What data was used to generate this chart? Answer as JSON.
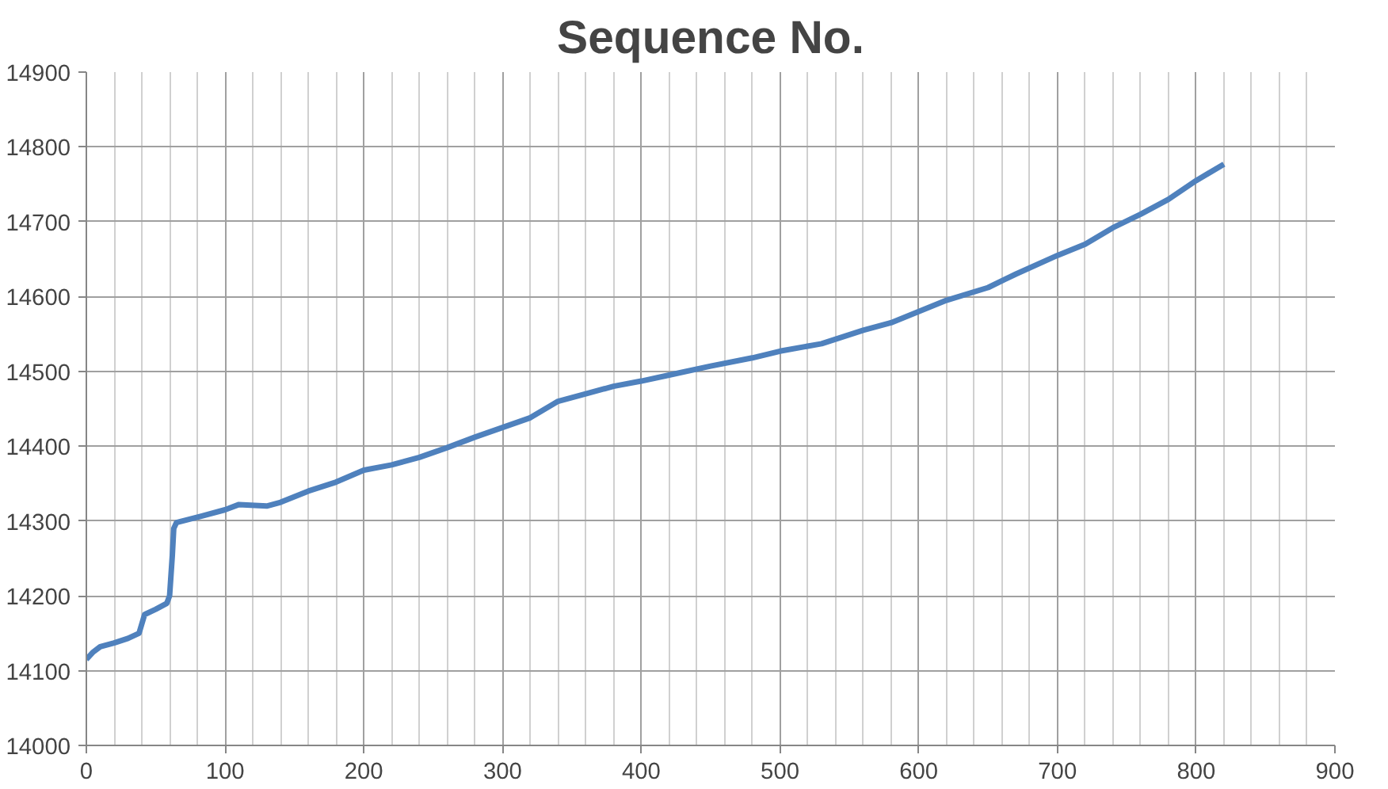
{
  "chart_data": {
    "type": "line",
    "title": "Sequence No.",
    "x": [
      0,
      5,
      10,
      20,
      30,
      38,
      42,
      50,
      58,
      60,
      62,
      63,
      65,
      80,
      100,
      110,
      130,
      140,
      160,
      180,
      200,
      220,
      240,
      260,
      280,
      300,
      320,
      340,
      360,
      380,
      400,
      420,
      450,
      480,
      500,
      530,
      560,
      580,
      600,
      620,
      650,
      670,
      700,
      720,
      740,
      760,
      780,
      800,
      820
    ],
    "series": [
      {
        "color": "#4f81bd",
        "values": [
          14115,
          14125,
          14132,
          14137,
          14143,
          14150,
          14175,
          14182,
          14190,
          14200,
          14255,
          14290,
          14298,
          14305,
          14315,
          14322,
          14320,
          14325,
          14340,
          14352,
          14368,
          14375,
          14385,
          14398,
          14412,
          14425,
          14438,
          14460,
          14470,
          14480,
          14487,
          14495,
          14507,
          14518,
          14527,
          14537,
          14555,
          14565,
          14580,
          14595,
          14612,
          14630,
          14655,
          14670,
          14692,
          14710,
          14730,
          14755,
          14777
        ]
      }
    ],
    "xlim": [
      0,
      900
    ],
    "xticks": [
      0,
      100,
      200,
      300,
      400,
      500,
      600,
      700,
      800,
      900
    ],
    "ylim": [
      14000,
      14900
    ],
    "yticks": [
      14000,
      14100,
      14200,
      14300,
      14400,
      14500,
      14600,
      14700,
      14800,
      14900
    ],
    "grid": true,
    "marker": "none",
    "line_style": "solid"
  }
}
